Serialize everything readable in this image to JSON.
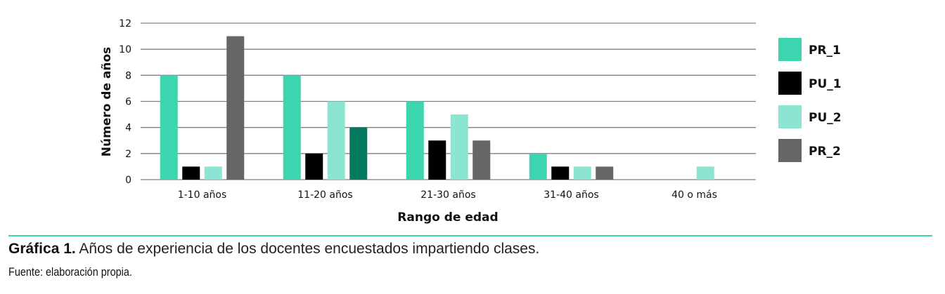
{
  "chart_data": {
    "type": "bar",
    "xlabel": "Rango de edad",
    "ylabel": "Número de años",
    "ylim": [
      0,
      12
    ],
    "yticks": [
      0,
      2,
      4,
      6,
      8,
      10,
      12
    ],
    "grid": true,
    "legend_position": "right",
    "categories": [
      "1-10 años",
      "11-20 años",
      "21-30 años",
      "31-40 años",
      "40 o más"
    ],
    "series": [
      {
        "name": "PR_1",
        "color": "#3dd4b0",
        "values": [
          8,
          8,
          6,
          2,
          0
        ]
      },
      {
        "name": "PU_1",
        "color": "#000000",
        "values": [
          1,
          2,
          3,
          1,
          0
        ]
      },
      {
        "name": "PU_2",
        "color": "#8be5d0",
        "values": [
          1,
          6,
          5,
          1,
          1
        ]
      },
      {
        "name": "PR_2",
        "color": "#666666",
        "values": [
          11,
          4,
          3,
          1,
          0
        ],
        "point_colors": {
          "1": "#037a5f"
        }
      }
    ]
  },
  "caption": {
    "label": "Gráfica 1.",
    "text": " Años de experiencia de los docentes encuestados impartiendo clases."
  },
  "source": "Fuente: elaboración propia."
}
